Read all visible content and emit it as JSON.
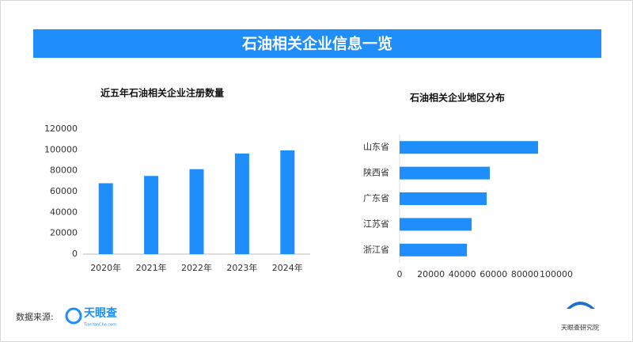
{
  "header": {
    "title": "石油相关企业信息一览"
  },
  "footer": {
    "source_label": "数据来源:",
    "logo_name": "天眼查",
    "logo_site": "TianYanCha.com",
    "institute": "天眼查研究院"
  },
  "chart_data": [
    {
      "type": "bar",
      "title": "近五年石油相关企业注册数量",
      "categories": [
        "2020年",
        "2021年",
        "2022年",
        "2023年",
        "2024年"
      ],
      "values": [
        68000,
        75000,
        81500,
        96500,
        99500
      ],
      "color": "#1f8efa",
      "ylim": [
        0,
        120000
      ],
      "yticks": [
        0,
        20000,
        40000,
        60000,
        80000,
        100000,
        120000
      ]
    },
    {
      "type": "barh",
      "title": "石油相关企业地区分布",
      "categories": [
        "山东省",
        "陕西省",
        "广东省",
        "江苏省",
        "浙江省"
      ],
      "values": [
        88400,
        57600,
        55600,
        46000,
        43000
      ],
      "color": "#1f8efa",
      "xlim": [
        0,
        100000
      ],
      "xticks": [
        0,
        20000,
        40000,
        60000,
        80000,
        100000
      ]
    }
  ]
}
